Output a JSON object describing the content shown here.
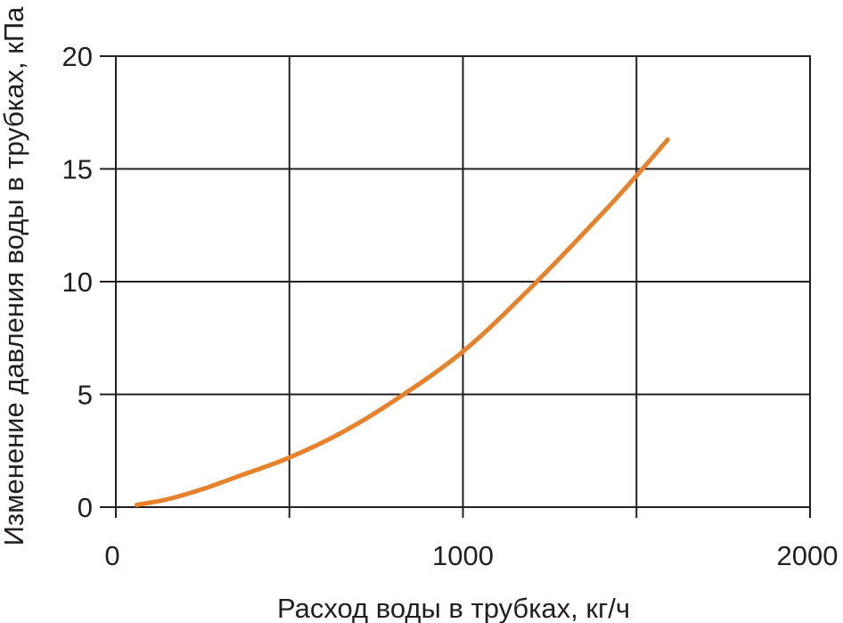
{
  "chart_data": {
    "type": "line",
    "xlabel": "Расход воды в трубках, кг/ч",
    "ylabel": "Изменение давления воды в трубках, кПа",
    "xlim": [
      0,
      2000
    ],
    "ylim": [
      0,
      20
    ],
    "x_ticks": [
      {
        "value": 0,
        "label": "0"
      },
      {
        "value": 1000,
        "label": "1000"
      },
      {
        "value": 2000,
        "label": "2000"
      }
    ],
    "x_gridlines": [
      500,
      1000,
      1500
    ],
    "y_ticks": [
      {
        "value": 0,
        "label": "0"
      },
      {
        "value": 5,
        "label": "5"
      },
      {
        "value": 10,
        "label": "10"
      },
      {
        "value": 15,
        "label": "15"
      },
      {
        "value": 20,
        "label": "20"
      }
    ],
    "grid": true,
    "legend": "none",
    "series": [
      {
        "color": "#e8822a",
        "x": [
          60,
          150,
          250,
          350,
          500,
          650,
          800,
          1000,
          1200,
          1400,
          1500,
          1590
        ],
        "y": [
          0.1,
          0.35,
          0.8,
          1.35,
          2.2,
          3.3,
          4.7,
          6.9,
          9.8,
          13.0,
          14.7,
          16.3
        ]
      }
    ]
  }
}
